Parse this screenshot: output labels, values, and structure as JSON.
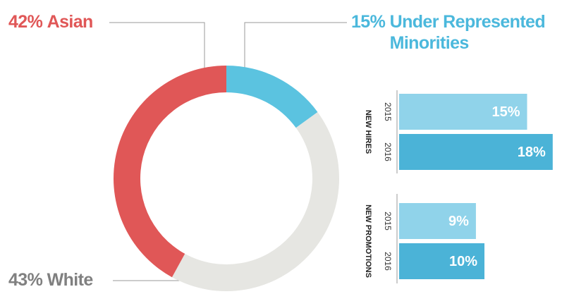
{
  "chart_data": [
    {
      "type": "donut",
      "categories": [
        "Under Represented Minorities",
        "White",
        "Asian"
      ],
      "values": [
        15,
        43,
        42
      ],
      "value_labels": [
        "15%",
        "43%",
        "42%"
      ],
      "colors": [
        "#5bc3e0",
        "#e6e6e2",
        "#e05757"
      ]
    },
    {
      "type": "bar",
      "orientation": "horizontal",
      "title": "NEW HIRES",
      "categories": [
        "2015",
        "2016"
      ],
      "values": [
        15,
        18
      ],
      "value_labels": [
        "15%",
        "18%"
      ],
      "colors": [
        "#90d3ea",
        "#4bb3d7"
      ]
    },
    {
      "type": "bar",
      "orientation": "horizontal",
      "title": "NEW PROMOTIONS",
      "categories": [
        "2015",
        "2016"
      ],
      "values": [
        9,
        10
      ],
      "value_labels": [
        "9%",
        "10%"
      ],
      "colors": [
        "#90d3ea",
        "#4bb3d7"
      ]
    }
  ]
}
